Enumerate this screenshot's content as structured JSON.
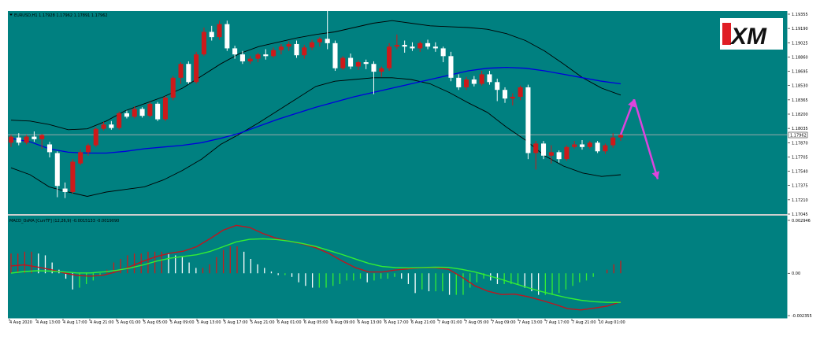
{
  "window": {
    "symbol_header": "EURUSD,H1  1.17928 1.17962 1.17891 1.17962",
    "indicator_header": "MACD_OsMA [CurrTF] (12,26,9) -0.0015133 -0.0019090",
    "current_price_label": "1.17962",
    "logo_text": "XM"
  },
  "colors": {
    "background": "#008080",
    "frame": "#ffffff",
    "bull_candle": "#cc1a1a",
    "bear_candle": "#ffffff",
    "bollinger": "#000000",
    "ma": "#0000dd",
    "macd_red": "#c0141e",
    "macd_green": "#33ee33",
    "hist_pos_rising": "#cc1a1a",
    "hist_pos_falling": "#ffffff",
    "hist_neg_rising": "#33ee33",
    "hist_neg_falling": "#ffffff",
    "forecast_arrow": "#dd44dd",
    "bid_line": "#b0b0b0"
  },
  "chart_data": [
    {
      "type": "candlestick",
      "symbol": "EURUSD",
      "timeframe": "H1",
      "price_axis_ticks": [
        "1.19355",
        "1.19190",
        "1.19025",
        "1.18860",
        "1.18695",
        "1.18530",
        "1.18365",
        "1.18200",
        "1.18035",
        "1.17870",
        "1.17705",
        "1.17540",
        "1.17375",
        "1.17210",
        "1.17045"
      ],
      "ylim": [
        1.17045,
        1.19355
      ],
      "x_tick_labels": [
        "4 Aug 2020",
        "4 Aug 13:00",
        "4 Aug 17:00",
        "4 Aug 21:00",
        "5 Aug 01:00",
        "5 Aug 05:00",
        "5 Aug 09:00",
        "5 Aug 13:00",
        "5 Aug 17:00",
        "5 Aug 21:00",
        "6 Aug 01:00",
        "6 Aug 05:00",
        "6 Aug 09:00",
        "6 Aug 13:00",
        "6 Aug 17:00",
        "6 Aug 21:00",
        "7 Aug 01:00",
        "7 Aug 05:00",
        "7 Aug 09:00",
        "7 Aug 13:00",
        "7 Aug 17:00",
        "7 Aug 21:00",
        "10 Aug 01:00"
      ],
      "candles": [
        [
          1.1787,
          1.1796,
          1.1782,
          1.1794
        ],
        [
          1.1793,
          1.1798,
          1.1784,
          1.1787
        ],
        [
          1.1787,
          1.1796,
          1.1785,
          1.1794
        ],
        [
          1.1794,
          1.18,
          1.1788,
          1.1791
        ],
        [
          1.1791,
          1.1797,
          1.178,
          1.1796
        ],
        [
          1.1785,
          1.1788,
          1.177,
          1.1776
        ],
        [
          1.1775,
          1.1777,
          1.1724,
          1.1737
        ],
        [
          1.1734,
          1.1741,
          1.1723,
          1.173
        ],
        [
          1.173,
          1.1768,
          1.1728,
          1.1765
        ],
        [
          1.1763,
          1.1779,
          1.1761,
          1.1776
        ],
        [
          1.1776,
          1.1786,
          1.1772,
          1.1784
        ],
        [
          1.1784,
          1.1805,
          1.1782,
          1.1803
        ],
        [
          1.1803,
          1.1811,
          1.1801,
          1.1808
        ],
        [
          1.1808,
          1.1812,
          1.1802,
          1.1804
        ],
        [
          1.1804,
          1.1823,
          1.1802,
          1.1821
        ],
        [
          1.1821,
          1.1824,
          1.1815,
          1.1817
        ],
        [
          1.1817,
          1.1829,
          1.1815,
          1.1826
        ],
        [
          1.1826,
          1.1828,
          1.1816,
          1.1818
        ],
        [
          1.1818,
          1.1834,
          1.1816,
          1.1832
        ],
        [
          1.1832,
          1.1834,
          1.1812,
          1.1814
        ],
        [
          1.1814,
          1.1841,
          1.1812,
          1.1839
        ],
        [
          1.1839,
          1.1864,
          1.1836,
          1.1862
        ],
        [
          1.1862,
          1.188,
          1.1855,
          1.1878
        ],
        [
          1.1878,
          1.1881,
          1.1855,
          1.1857
        ],
        [
          1.1857,
          1.1892,
          1.1855,
          1.1889
        ],
        [
          1.1889,
          1.192,
          1.1887,
          1.1915
        ],
        [
          1.1915,
          1.1922,
          1.1905,
          1.1909
        ],
        [
          1.1909,
          1.1928,
          1.1906,
          1.1924
        ],
        [
          1.1924,
          1.1928,
          1.1893,
          1.1896
        ],
        [
          1.1896,
          1.1899,
          1.1884,
          1.1889
        ],
        [
          1.1889,
          1.1893,
          1.1878,
          1.1881
        ],
        [
          1.1881,
          1.1887,
          1.1878,
          1.1884
        ],
        [
          1.1884,
          1.1891,
          1.188,
          1.1889
        ],
        [
          1.1889,
          1.1895,
          1.1883,
          1.1887
        ],
        [
          1.1887,
          1.1897,
          1.1885,
          1.1894
        ],
        [
          1.1894,
          1.1901,
          1.1889,
          1.1898
        ],
        [
          1.1898,
          1.1904,
          1.1893,
          1.1901
        ],
        [
          1.1901,
          1.1905,
          1.1885,
          1.1888
        ],
        [
          1.1888,
          1.19,
          1.1884,
          1.1897
        ],
        [
          1.1897,
          1.1906,
          1.1894,
          1.1903
        ],
        [
          1.1903,
          1.1909,
          1.1898,
          1.1907
        ],
        [
          1.1907,
          1.1949,
          1.1895,
          1.1902
        ],
        [
          1.1902,
          1.1905,
          1.187,
          1.1873
        ],
        [
          1.1873,
          1.1887,
          1.1871,
          1.1885
        ],
        [
          1.1885,
          1.189,
          1.1872,
          1.1875
        ],
        [
          1.1875,
          1.1882,
          1.1871,
          1.188
        ],
        [
          1.188,
          1.1883,
          1.1872,
          1.1878
        ],
        [
          1.1878,
          1.1881,
          1.1843,
          1.1869
        ],
        [
          1.1869,
          1.1875,
          1.1863,
          1.1873
        ],
        [
          1.1873,
          1.1902,
          1.187,
          1.1898
        ],
        [
          1.1898,
          1.1912,
          1.1895,
          1.19
        ],
        [
          1.19,
          1.1905,
          1.1891,
          1.1898
        ],
        [
          1.1898,
          1.1903,
          1.1893,
          1.1896
        ],
        [
          1.1896,
          1.1904,
          1.1892,
          1.1902
        ],
        [
          1.1902,
          1.1906,
          1.1895,
          1.1898
        ],
        [
          1.1898,
          1.1903,
          1.1892,
          1.1896
        ],
        [
          1.1896,
          1.1898,
          1.188,
          1.1887
        ],
        [
          1.1887,
          1.1892,
          1.1858,
          1.1862
        ],
        [
          1.1862,
          1.1866,
          1.1848,
          1.1851
        ],
        [
          1.1851,
          1.1863,
          1.1848,
          1.186
        ],
        [
          1.186,
          1.1864,
          1.1852,
          1.1855
        ],
        [
          1.1855,
          1.187,
          1.1853,
          1.1866
        ],
        [
          1.1866,
          1.187,
          1.1854,
          1.1857
        ],
        [
          1.1857,
          1.1861,
          1.1835,
          1.1848
        ],
        [
          1.1848,
          1.1851,
          1.1833,
          1.1838
        ],
        [
          1.1838,
          1.1844,
          1.183,
          1.184
        ],
        [
          1.184,
          1.1853,
          1.1836,
          1.1851
        ],
        [
          1.1851,
          1.1854,
          1.1768,
          1.1775
        ],
        [
          1.1775,
          1.1789,
          1.1756,
          1.1786
        ],
        [
          1.1786,
          1.1789,
          1.1768,
          1.1772
        ],
        [
          1.1772,
          1.1784,
          1.1763,
          1.1776
        ],
        [
          1.1776,
          1.1778,
          1.1764,
          1.1768
        ],
        [
          1.1768,
          1.1784,
          1.1766,
          1.1782
        ],
        [
          1.1782,
          1.1789,
          1.178,
          1.1785
        ],
        [
          1.1785,
          1.179,
          1.1779,
          1.1782
        ],
        [
          1.1782,
          1.1789,
          1.178,
          1.1787
        ],
        [
          1.1787,
          1.1789,
          1.1775,
          1.1777
        ],
        [
          1.1777,
          1.1786,
          1.1774,
          1.1784
        ],
        [
          1.1784,
          1.1798,
          1.1781,
          1.1793
        ],
        [
          1.1793,
          1.1797,
          1.1789,
          1.1796
        ]
      ],
      "bollinger_upper": [
        1.1813,
        1.1812,
        1.1808,
        1.1802,
        1.1803,
        1.1812,
        1.1824,
        1.1832,
        1.184,
        1.185,
        1.1864,
        1.1878,
        1.189,
        1.1898,
        1.1903,
        1.1908,
        1.1912,
        1.1915,
        1.192,
        1.1925,
        1.1928,
        1.1925,
        1.1922,
        1.1921,
        1.192,
        1.1918,
        1.1913,
        1.1905,
        1.1893,
        1.1878,
        1.1862,
        1.185,
        1.1842
      ],
      "bollinger_lower": [
        1.1758,
        1.175,
        1.1736,
        1.173,
        1.1725,
        1.173,
        1.1733,
        1.1736,
        1.1744,
        1.1755,
        1.1768,
        1.1785,
        1.1797,
        1.181,
        1.1824,
        1.1838,
        1.1852,
        1.1858,
        1.186,
        1.1862,
        1.1862,
        1.186,
        1.1855,
        1.1845,
        1.1833,
        1.1822,
        1.1805,
        1.179,
        1.1772,
        1.176,
        1.1752,
        1.1748,
        1.175
      ],
      "moving_average": [
        1.1792,
        1.1788,
        1.178,
        1.1776,
        1.1775,
        1.1775,
        1.1777,
        1.178,
        1.1782,
        1.1784,
        1.1787,
        1.1792,
        1.1798,
        1.1806,
        1.1814,
        1.1821,
        1.1828,
        1.1834,
        1.184,
        1.1845,
        1.185,
        1.1855,
        1.186,
        1.1865,
        1.187,
        1.1873,
        1.1874,
        1.1873,
        1.187,
        1.1866,
        1.1862,
        1.1858,
        1.1855
      ],
      "current_price": 1.17962,
      "forecast": [
        1.17962,
        1.1837,
        1.1745
      ]
    },
    {
      "type": "histogram_with_lines",
      "indicator": "MACD_OsMA",
      "y_axis_ticks": [
        "0.002946",
        "0.00",
        "-0.002355"
      ],
      "ylim": [
        -0.002355,
        0.002946
      ],
      "histogram": [
        0.0011,
        0.0011,
        0.0012,
        0.0012,
        0.0011,
        0.001,
        0.0006,
        0.0002,
        -0.0003,
        -0.0009,
        -0.0008,
        -0.0006,
        -0.0004,
        -0.0001,
        0.0002,
        0.0006,
        0.0008,
        0.001,
        0.0011,
        0.0011,
        0.0012,
        0.0012,
        0.0012,
        0.0011,
        0.001,
        0.0009,
        0.0006,
        0.0003,
        0.0003,
        0.0005,
        0.0009,
        0.0013,
        0.0015,
        0.0015,
        0.0012,
        0.0008,
        0.0005,
        0.0003,
        0.0001,
        -0.0001,
        -0.0001,
        -0.0002,
        -0.0005,
        -0.0007,
        -0.0008,
        -0.0008,
        -0.0008,
        -0.0007,
        -0.0006,
        -0.0004,
        -0.0004,
        -0.0003,
        -0.0005,
        -0.0004,
        -0.0003,
        -0.0003,
        -0.0002,
        -0.0003,
        -0.0006,
        -0.0011,
        -0.0009,
        -0.001,
        -0.001,
        -0.001,
        -0.0012,
        -0.0012,
        -0.0012,
        -0.0008,
        -0.0005,
        -0.0003,
        -0.0004,
        -0.0006,
        -0.0006,
        -0.0006,
        -0.0006,
        -0.0008,
        -0.001,
        -0.0012,
        -0.0012,
        -0.0012,
        -0.0011,
        -0.0009,
        -0.0007,
        -0.0005,
        -0.0004,
        -0.0002,
        -0.0,
        0.0002,
        0.0005,
        0.0007
      ],
      "macd_red": [
        0.00041,
        0.00047,
        0.00035,
        0.00021,
        2e-05,
        -0.00012,
        -0.00016,
        -0.0001,
        0.0001,
        0.00038,
        0.00068,
        0.00094,
        0.00112,
        0.00123,
        0.00148,
        0.00192,
        0.0024,
        0.00267,
        0.00255,
        0.00222,
        0.00195,
        0.00178,
        0.00163,
        0.00142,
        0.0011,
        0.00068,
        0.00031,
        7e-05,
        7e-05,
        0.00018,
        0.00025,
        0.00031,
        0.00031,
        0.00022,
        -0.0002,
        -0.0007,
        -0.001,
        -0.00118,
        -0.00116,
        -0.0013,
        -0.0015,
        -0.00172,
        -0.00197,
        -0.00204,
        -0.00194,
        -0.00182,
        -0.00159
      ],
      "macd_green": [
        1e-05,
        0.0001,
        0.00014,
        0.00012,
        8e-05,
        2e-05,
        2e-05,
        8e-05,
        0.00017,
        0.0003,
        0.00047,
        0.00068,
        0.00084,
        0.00094,
        0.00103,
        0.00121,
        0.00148,
        0.00175,
        0.00189,
        0.00192,
        0.00188,
        0.00179,
        0.00166,
        0.00149,
        0.00127,
        0.00104,
        0.00079,
        0.00055,
        0.00038,
        0.00032,
        0.0003,
        0.00032,
        0.00034,
        0.00033,
        0.00022,
        7e-05,
        -0.00013,
        -0.00034,
        -0.00057,
        -0.0008,
        -0.00101,
        -0.0012,
        -0.00137,
        -0.0015,
        -0.00158,
        -0.00162,
        -0.00162
      ]
    }
  ]
}
